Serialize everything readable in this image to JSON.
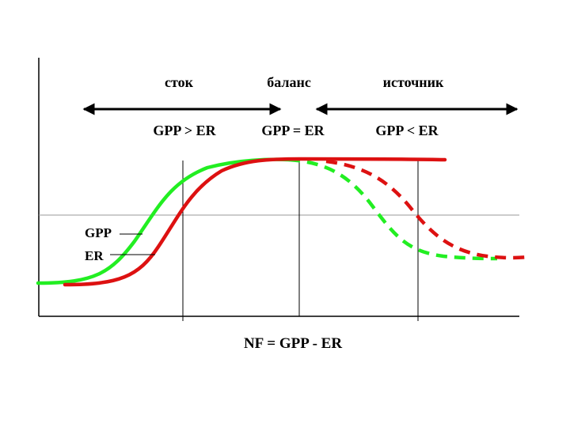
{
  "headers": {
    "sink": "сток",
    "balance": "баланс",
    "source": "источник"
  },
  "conditions": {
    "sink": "GPP > ER",
    "balance": "GPP = ER",
    "source": "GPP < ER"
  },
  "legend": {
    "gpp": "GPP",
    "er": "ER"
  },
  "footer": "NF = GPP - ER",
  "colors": {
    "gpp": "#22ee22",
    "er": "#dd1111",
    "axis": "#000000",
    "grid": "#999999"
  }
}
